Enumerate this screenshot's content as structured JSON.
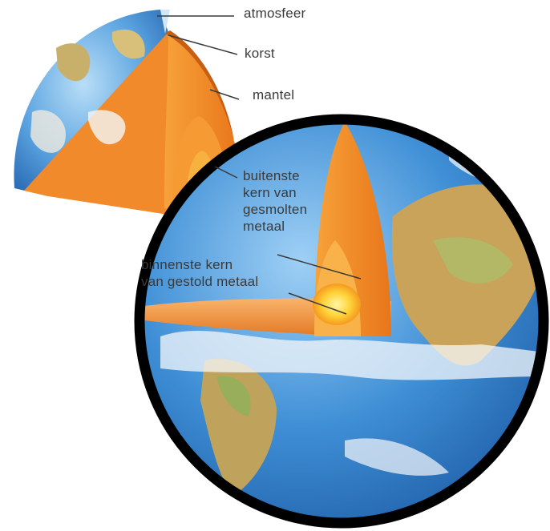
{
  "diagram": {
    "labels": {
      "atmosphere": "atmosfeer",
      "crust": "korst",
      "mantle": "mantel",
      "outer_core": [
        "buitenste",
        "kern van",
        "gesmolten",
        "metaal"
      ],
      "inner_core": [
        "binnenste kern",
        "van gestold metaal"
      ]
    },
    "colors": {
      "ocean": "#3f8fd6",
      "land": "#c9a35a",
      "mantle": "#f28a1c",
      "outer_core": "#f6a93a",
      "inner_core": "#ffd84a",
      "outline": "#000000"
    }
  }
}
